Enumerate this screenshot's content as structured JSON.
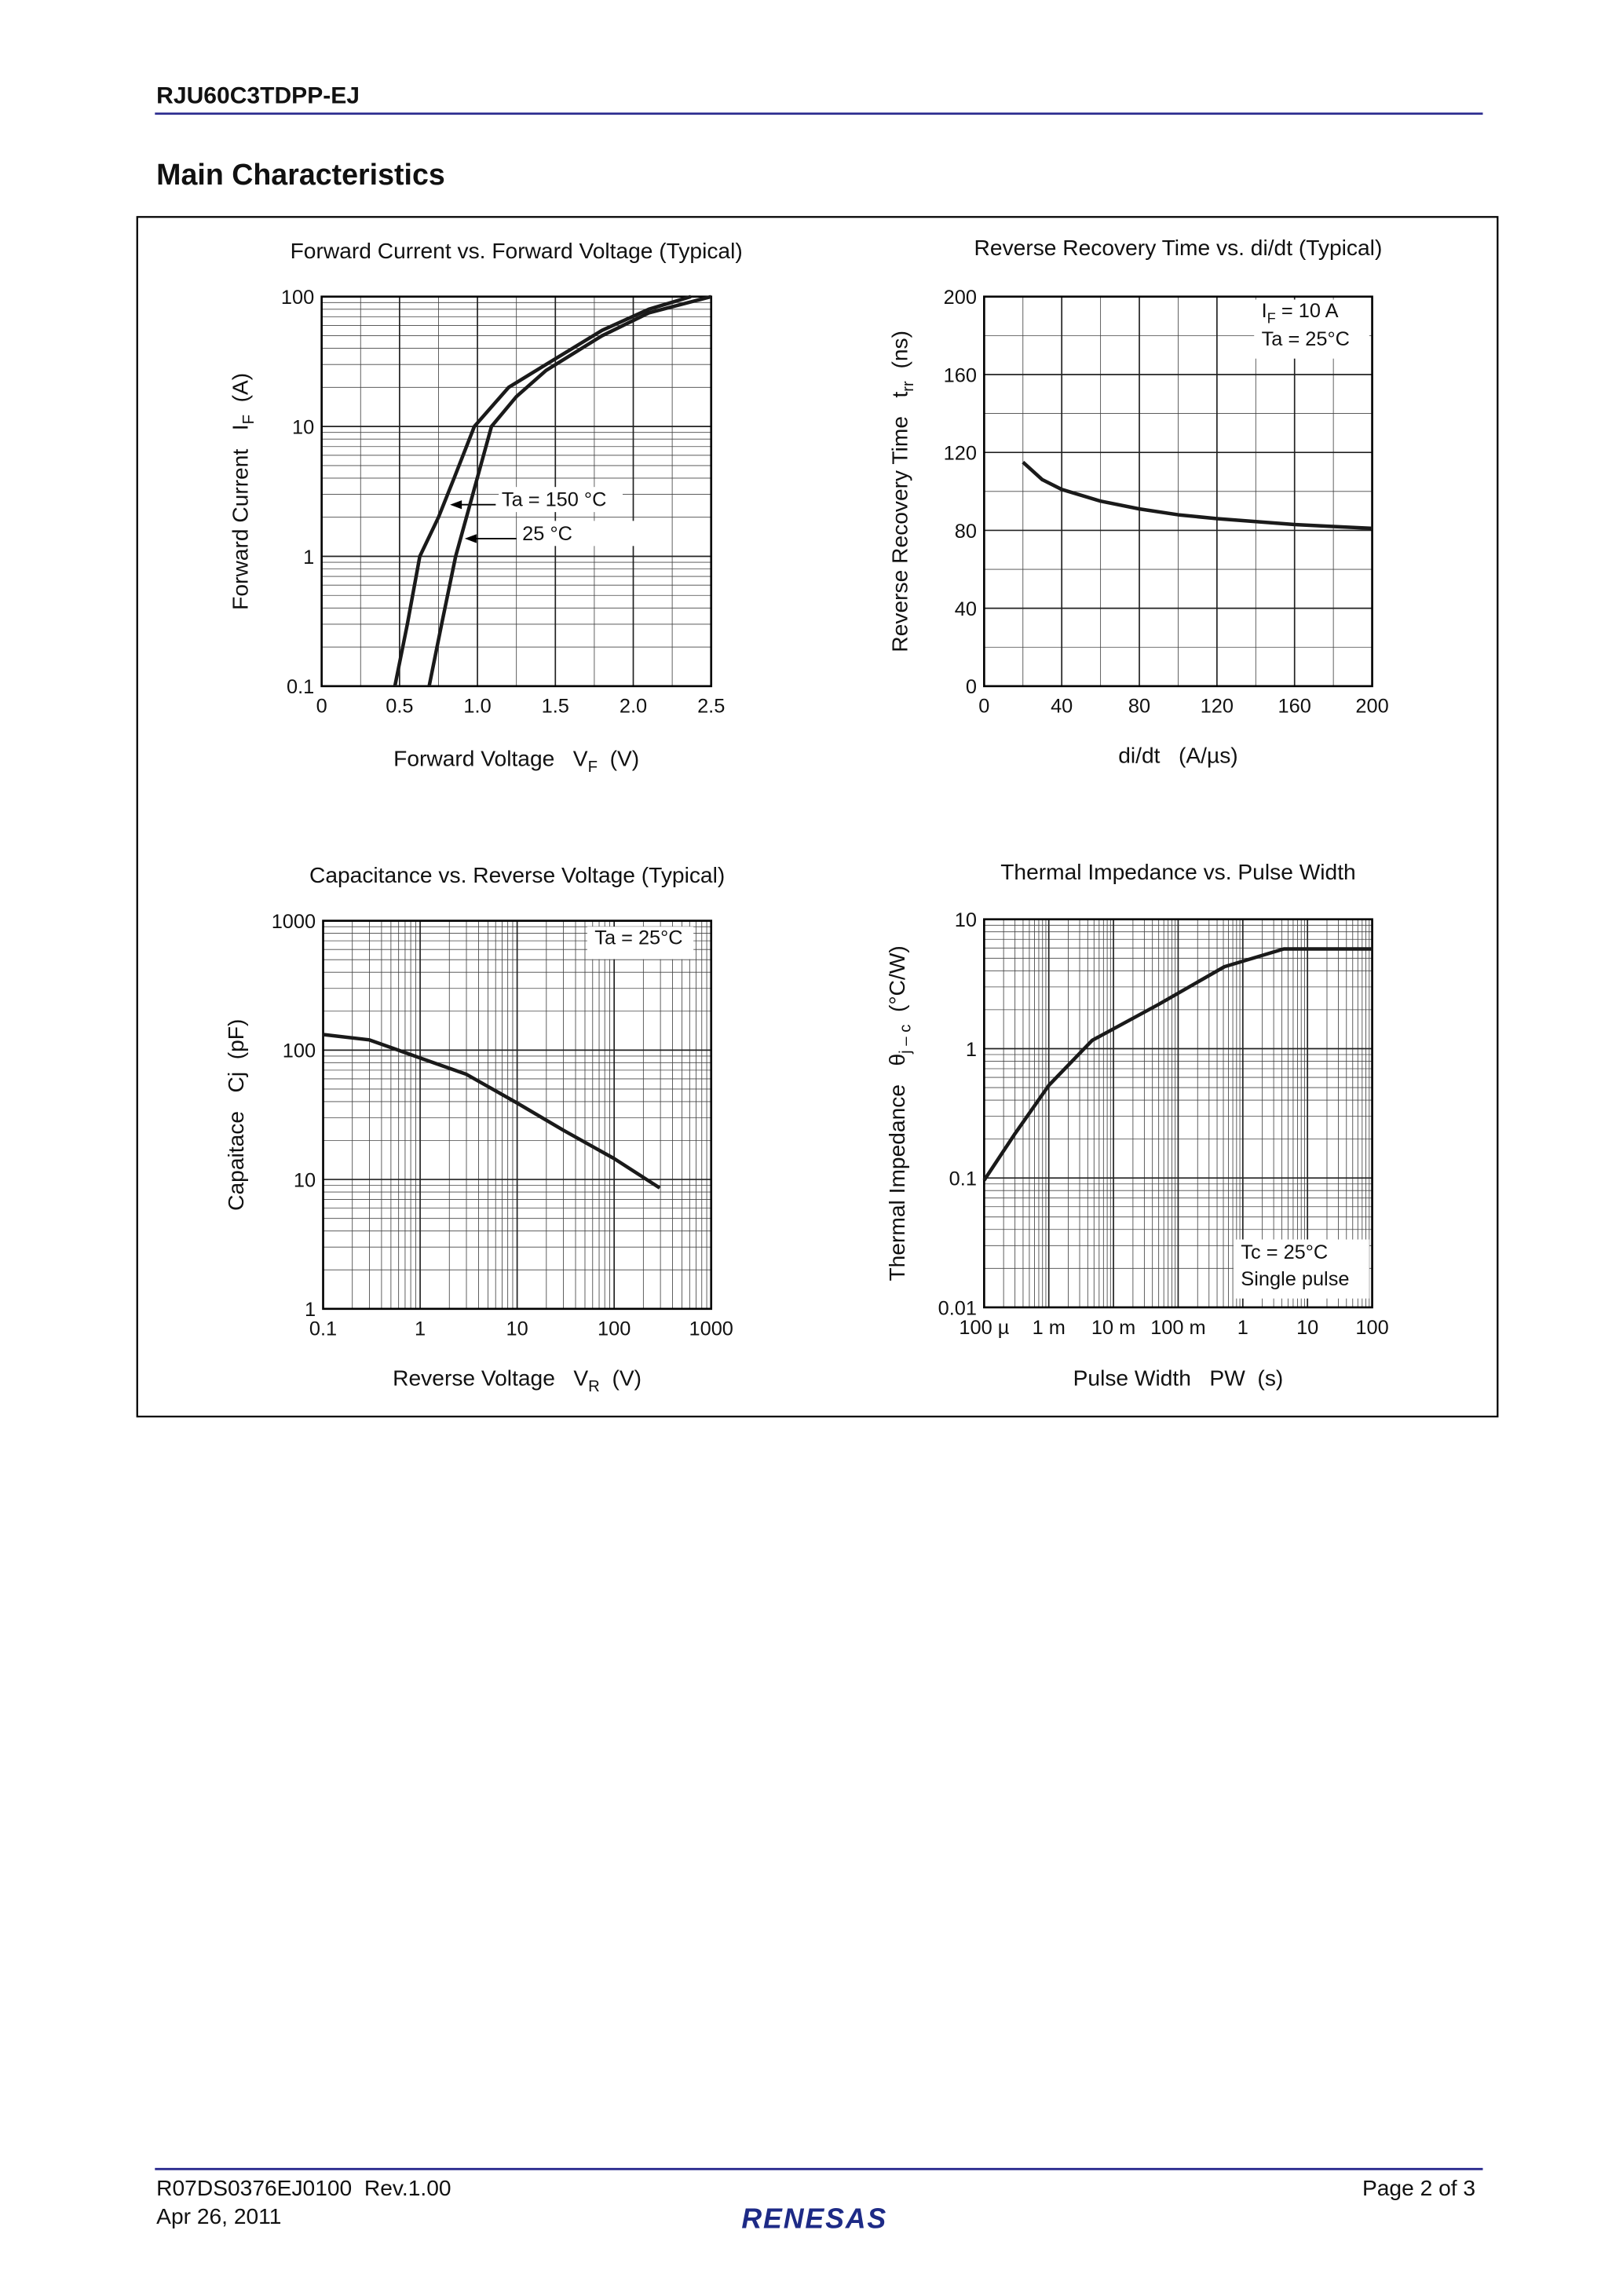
{
  "header": {
    "title": "RJU60C3TDPP-EJ"
  },
  "section_title": "Main Characteristics",
  "chart_data": [
    {
      "type": "line",
      "title": "Forward Current vs. Forward Voltage (Typical)",
      "x_label": [
        "Forward Voltage   V",
        "F",
        "  (V)"
      ],
      "y_label": [
        "Forward Current   I",
        "F",
        "  (A)"
      ],
      "xlim": [
        0,
        2.5
      ],
      "ylim": [
        0.1,
        100
      ],
      "yscale": "log",
      "grid": true,
      "xticks": [
        0,
        0.5,
        {
          "value": 1,
          "label": "1.0"
        },
        1.5,
        {
          "value": 2,
          "label": "2.0"
        },
        2.5
      ],
      "yticks": [
        0.1,
        1,
        10,
        100
      ],
      "series": [
        {
          "name": "Ta = 150 °C",
          "color": "#1a1a1a",
          "x": [
            0.47,
            0.55,
            0.63,
            0.75,
            0.85,
            0.98,
            1.2,
            1.44,
            1.8,
            2.1,
            2.37
          ],
          "values": [
            0.1,
            0.3,
            1,
            2,
            4,
            10,
            20,
            30,
            55,
            80,
            100
          ]
        },
        {
          "name": "25 °C",
          "color": "#1a1a1a",
          "x": [
            0.69,
            0.77,
            0.86,
            0.97,
            1.09,
            1.25,
            1.44,
            1.8,
            2.1,
            2.5
          ],
          "values": [
            0.1,
            0.3,
            1,
            3,
            10,
            17,
            27,
            50,
            75,
            100
          ]
        }
      ]
    },
    {
      "type": "line",
      "title": "Reverse Recovery Time vs. di/dt (Typical)",
      "x_label": "di/dt   (A/µs)",
      "y_label": [
        "Reverse Recovery Time   t",
        "rr",
        "  (ns)"
      ],
      "xlim": [
        0,
        200
      ],
      "ylim": [
        0,
        200
      ],
      "grid": true,
      "xticks": [
        0,
        40,
        80,
        120,
        160,
        200
      ],
      "yticks": [
        0,
        40,
        80,
        120,
        160,
        200
      ],
      "annotations": [
        [
          "I",
          "F",
          " = 10 A"
        ],
        "Ta = 25°C"
      ],
      "series": [
        {
          "color": "#1a1a1a",
          "x": [
            20,
            30,
            40,
            60,
            80,
            100,
            120,
            140,
            160,
            180,
            200
          ],
          "values": [
            115,
            106,
            101,
            95,
            91,
            88,
            86,
            84.5,
            83,
            82,
            81
          ]
        }
      ]
    },
    {
      "type": "line",
      "title": "Capacitance vs. Reverse Voltage (Typical)",
      "x_label": [
        "Reverse Voltage   V",
        "R",
        "  (V)"
      ],
      "y_label": [
        "Capaitace   Cj  (pF)"
      ],
      "xlim": [
        0.1,
        1000
      ],
      "ylim": [
        1,
        1000
      ],
      "xscale": "log",
      "yscale": "log",
      "grid": true,
      "xticks": [
        0.1,
        1,
        10,
        100,
        1000
      ],
      "yticks": [
        1,
        10,
        100,
        1000
      ],
      "annotations": [
        "Ta = 25°C"
      ],
      "series": [
        {
          "color": "#1a1a1a",
          "x": [
            0.1,
            0.3,
            1,
            3,
            10,
            30,
            100,
            295
          ],
          "values": [
            132,
            120,
            87,
            65,
            39,
            24,
            14.5,
            8.6
          ]
        }
      ]
    },
    {
      "type": "line",
      "title": "Thermal Impedance vs. Pulse Width",
      "x_label": "Pulse Width   PW  (s)",
      "y_label": [
        "Thermal Impedance   θ",
        "j – c",
        "  (°C/W)"
      ],
      "xlim": [
        0.0001,
        100
      ],
      "ylim": [
        0.01,
        10
      ],
      "xscale": "log",
      "yscale": "log",
      "grid": true,
      "xticks": [
        {
          "value": 0.0001,
          "label": "100 µ"
        },
        {
          "value": 0.001,
          "label": "1 m"
        },
        {
          "value": 0.01,
          "label": "10 m"
        },
        {
          "value": 0.1,
          "label": "100 m"
        },
        1,
        10,
        100
      ],
      "yticks": [
        0.01,
        0.1,
        1,
        10
      ],
      "annotations": [
        "Tc = 25°C",
        "Single pulse"
      ],
      "series": [
        {
          "color": "#1a1a1a",
          "x": [
            0.0001,
            0.0003,
            0.001,
            0.0047,
            0.05,
            0.52,
            4.3,
            21,
            100
          ],
          "values": [
            0.096,
            0.22,
            0.52,
            1.16,
            2.2,
            4.3,
            5.9,
            5.9,
            5.9
          ]
        }
      ]
    }
  ],
  "footer": {
    "doc_number": "R07DS0376EJ0100  Rev.1.00",
    "date": "Apr 26, 2011",
    "page": "Page 2 of 3",
    "logo": "RENESAS"
  }
}
